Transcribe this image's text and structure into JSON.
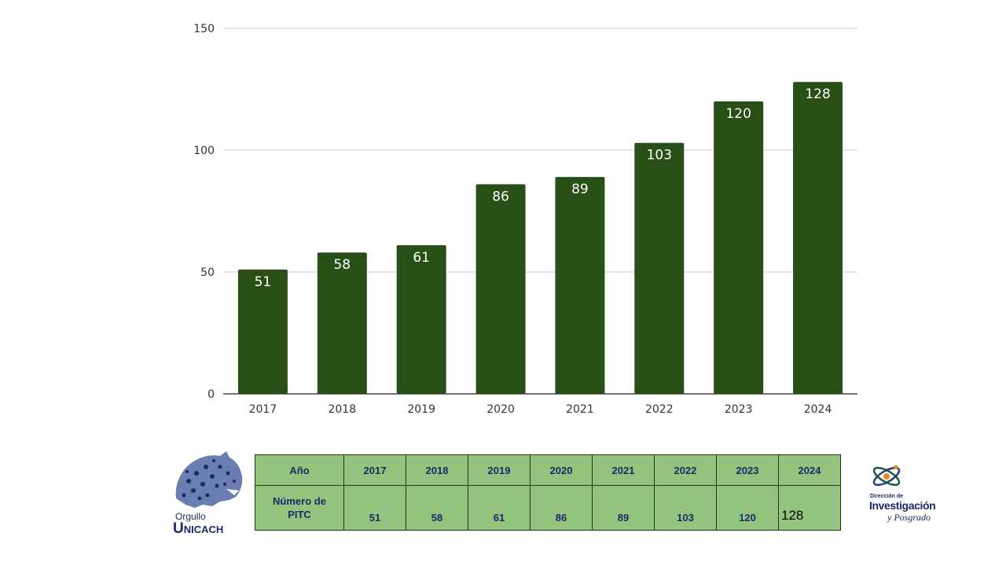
{
  "chart_data": {
    "type": "bar",
    "categories": [
      "2017",
      "2018",
      "2019",
      "2020",
      "2021",
      "2022",
      "2023",
      "2024"
    ],
    "values": [
      51,
      58,
      61,
      86,
      89,
      103,
      120,
      128
    ],
    "title": "",
    "xlabel": "",
    "ylabel": "",
    "ylim": [
      0,
      150
    ],
    "yticks": [
      "0",
      "50",
      "100",
      "150"
    ],
    "grid": true,
    "legend": "none",
    "bar_color": "#284f15",
    "data_labels": true
  },
  "table": {
    "header_label": "Año",
    "row_label_line1": "Número de",
    "row_label_line2": "PITC",
    "years": [
      "2017",
      "2018",
      "2019",
      "2020",
      "2021",
      "2022",
      "2023",
      "2024"
    ],
    "values": [
      "51",
      "58",
      "61",
      "86",
      "89",
      "103",
      "120",
      "128"
    ],
    "cell_color": "#93c47d",
    "text_color": "#1b2a6b"
  },
  "logos": {
    "left_small": "Orgullo",
    "left_big": "Unicach",
    "right_small": "Dirección de",
    "right_big": "Investigación",
    "right_sub": "y Posgrado"
  }
}
